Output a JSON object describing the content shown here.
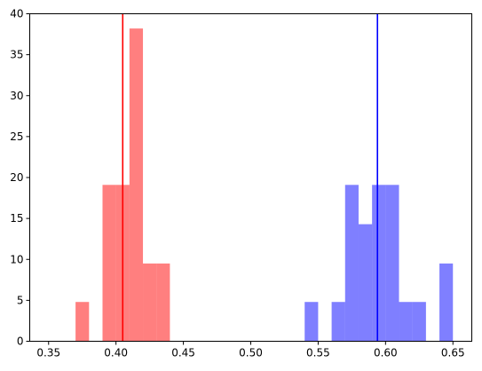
{
  "chart_data": {
    "type": "bar",
    "title": "",
    "xlabel": "",
    "ylabel": "",
    "xlim": [
      0.336,
      0.664
    ],
    "ylim": [
      0,
      40
    ],
    "grid": false,
    "xticks": [
      0.35,
      0.4,
      0.45,
      0.5,
      0.55,
      0.6,
      0.65
    ],
    "xtick_labels": [
      "0.35",
      "0.40",
      "0.45",
      "0.50",
      "0.55",
      "0.60",
      "0.65"
    ],
    "yticks": [
      0,
      5,
      10,
      15,
      20,
      25,
      30,
      35,
      40
    ],
    "ytick_labels": [
      "0",
      "5",
      "10",
      "15",
      "20",
      "25",
      "30",
      "35",
      "40"
    ],
    "series": [
      {
        "color": "#ff0000",
        "opacity": 0.5,
        "bins": [
          {
            "x0": 0.37,
            "x1": 0.38,
            "value": 4.8
          },
          {
            "x0": 0.39,
            "x1": 0.4,
            "value": 19.1
          },
          {
            "x0": 0.4,
            "x1": 0.41,
            "value": 19.1
          },
          {
            "x0": 0.41,
            "x1": 0.42,
            "value": 38.2
          },
          {
            "x0": 0.42,
            "x1": 0.43,
            "value": 9.5
          },
          {
            "x0": 0.43,
            "x1": 0.44,
            "value": 9.5
          }
        ],
        "vline": 0.405
      },
      {
        "color": "#0000ff",
        "opacity": 0.5,
        "bins": [
          {
            "x0": 0.54,
            "x1": 0.55,
            "value": 4.8
          },
          {
            "x0": 0.56,
            "x1": 0.57,
            "value": 4.8
          },
          {
            "x0": 0.57,
            "x1": 0.58,
            "value": 19.1
          },
          {
            "x0": 0.58,
            "x1": 0.59,
            "value": 14.3
          },
          {
            "x0": 0.59,
            "x1": 0.6,
            "value": 19.1
          },
          {
            "x0": 0.6,
            "x1": 0.61,
            "value": 19.1
          },
          {
            "x0": 0.61,
            "x1": 0.62,
            "value": 4.8
          },
          {
            "x0": 0.62,
            "x1": 0.63,
            "value": 4.8
          },
          {
            "x0": 0.64,
            "x1": 0.65,
            "value": 9.5
          }
        ],
        "vline": 0.594
      }
    ]
  }
}
